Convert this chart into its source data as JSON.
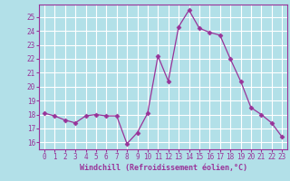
{
  "x": [
    0,
    1,
    2,
    3,
    4,
    5,
    6,
    7,
    8,
    9,
    10,
    11,
    12,
    13,
    14,
    15,
    16,
    17,
    18,
    19,
    20,
    21,
    22,
    23
  ],
  "y": [
    18.1,
    17.9,
    17.6,
    17.4,
    17.9,
    18.0,
    17.9,
    17.9,
    15.9,
    16.7,
    18.1,
    22.2,
    20.4,
    24.3,
    25.5,
    24.2,
    23.9,
    23.7,
    22.0,
    20.4,
    18.5,
    18.0,
    17.4,
    16.4
  ],
  "line_color": "#993399",
  "marker": "D",
  "marker_size": 2.5,
  "background_color": "#b2e0e8",
  "grid_color": "#ffffff",
  "xlabel": "Windchill (Refroidissement éolien,°C)",
  "ylim": [
    15.5,
    25.9
  ],
  "xlim": [
    -0.5,
    23.5
  ],
  "yticks": [
    16,
    17,
    18,
    19,
    20,
    21,
    22,
    23,
    24,
    25
  ],
  "xticks": [
    0,
    1,
    2,
    3,
    4,
    5,
    6,
    7,
    8,
    9,
    10,
    11,
    12,
    13,
    14,
    15,
    16,
    17,
    18,
    19,
    20,
    21,
    22,
    23
  ],
  "axis_color": "#993399",
  "tick_color": "#993399",
  "label_color": "#993399",
  "spine_color": "#993399"
}
